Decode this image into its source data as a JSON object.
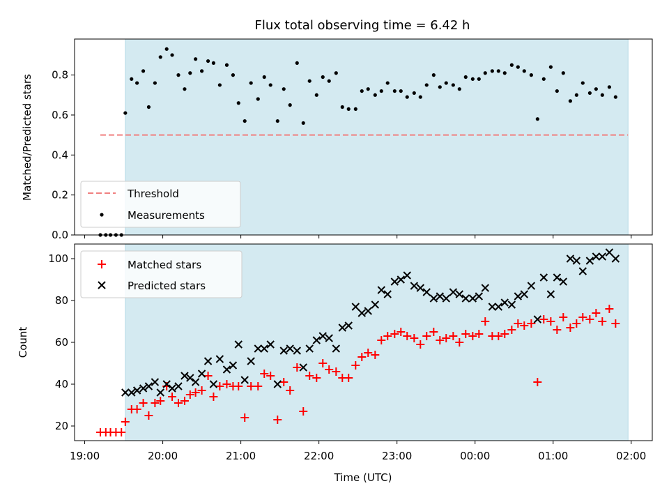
{
  "chart_data": [
    {
      "type": "scatter",
      "title": "Flux total observing time = 6.42 h",
      "ylabel": "Matched/Predicted stars",
      "ylim": [
        0,
        0.98
      ],
      "yticks": [
        "0.0",
        "0.2",
        "0.4",
        "0.6",
        "0.8"
      ],
      "ytick_values": [
        0,
        0.2,
        0.4,
        0.6,
        0.8
      ],
      "xlim": [
        18.87,
        26.27
      ],
      "x_unit": "hours since 00:00 of the first night (UTC)",
      "shaded_span": [
        19.52,
        25.96
      ],
      "shade_color": "#d4eaf1",
      "threshold": {
        "name": "Threshold",
        "y": 0.5,
        "x": [
          19.2,
          25.96
        ],
        "color": "#f08080"
      },
      "legend": [
        "Threshold",
        "Measurements"
      ],
      "legend_location": "lower left",
      "series": [
        {
          "name": "Measurements",
          "color": "#000000",
          "points": [
            [
              19.2,
              0.0
            ],
            [
              19.27,
              0.0
            ],
            [
              19.33,
              0.0
            ],
            [
              19.4,
              0.0
            ],
            [
              19.47,
              0.0
            ],
            [
              19.52,
              0.61
            ],
            [
              19.6,
              0.78
            ],
            [
              19.67,
              0.76
            ],
            [
              19.75,
              0.82
            ],
            [
              19.82,
              0.64
            ],
            [
              19.9,
              0.76
            ],
            [
              19.97,
              0.89
            ],
            [
              20.05,
              0.93
            ],
            [
              20.12,
              0.9
            ],
            [
              20.2,
              0.8
            ],
            [
              20.28,
              0.73
            ],
            [
              20.35,
              0.81
            ],
            [
              20.42,
              0.88
            ],
            [
              20.5,
              0.82
            ],
            [
              20.58,
              0.87
            ],
            [
              20.65,
              0.86
            ],
            [
              20.73,
              0.75
            ],
            [
              20.82,
              0.85
            ],
            [
              20.9,
              0.8
            ],
            [
              20.97,
              0.66
            ],
            [
              21.05,
              0.57
            ],
            [
              21.13,
              0.76
            ],
            [
              21.22,
              0.68
            ],
            [
              21.3,
              0.79
            ],
            [
              21.38,
              0.75
            ],
            [
              21.47,
              0.57
            ],
            [
              21.55,
              0.73
            ],
            [
              21.63,
              0.65
            ],
            [
              21.72,
              0.86
            ],
            [
              21.8,
              0.56
            ],
            [
              21.88,
              0.77
            ],
            [
              21.97,
              0.7
            ],
            [
              22.05,
              0.79
            ],
            [
              22.13,
              0.77
            ],
            [
              22.22,
              0.81
            ],
            [
              22.3,
              0.64
            ],
            [
              22.38,
              0.63
            ],
            [
              22.47,
              0.63
            ],
            [
              22.55,
              0.72
            ],
            [
              22.63,
              0.73
            ],
            [
              22.72,
              0.7
            ],
            [
              22.8,
              0.72
            ],
            [
              22.88,
              0.76
            ],
            [
              22.97,
              0.72
            ],
            [
              23.05,
              0.72
            ],
            [
              23.13,
              0.69
            ],
            [
              23.22,
              0.71
            ],
            [
              23.3,
              0.69
            ],
            [
              23.38,
              0.75
            ],
            [
              23.47,
              0.8
            ],
            [
              23.55,
              0.74
            ],
            [
              23.63,
              0.76
            ],
            [
              23.72,
              0.75
            ],
            [
              23.8,
              0.73
            ],
            [
              23.88,
              0.79
            ],
            [
              23.97,
              0.78
            ],
            [
              24.05,
              0.78
            ],
            [
              24.13,
              0.81
            ],
            [
              24.22,
              0.82
            ],
            [
              24.3,
              0.82
            ],
            [
              24.38,
              0.81
            ],
            [
              24.47,
              0.85
            ],
            [
              24.55,
              0.84
            ],
            [
              24.63,
              0.82
            ],
            [
              24.72,
              0.8
            ],
            [
              24.8,
              0.58
            ],
            [
              24.88,
              0.78
            ],
            [
              24.97,
              0.84
            ],
            [
              25.05,
              0.72
            ],
            [
              25.13,
              0.81
            ],
            [
              25.22,
              0.67
            ],
            [
              25.3,
              0.7
            ],
            [
              25.38,
              0.76
            ],
            [
              25.47,
              0.71
            ],
            [
              25.55,
              0.73
            ],
            [
              25.63,
              0.7
            ],
            [
              25.72,
              0.74
            ],
            [
              25.8,
              0.69
            ]
          ]
        }
      ]
    },
    {
      "type": "scatter",
      "xlabel": "Time (UTC)",
      "ylabel": "Count",
      "ylim": [
        13,
        107
      ],
      "yticks": [
        "20",
        "40",
        "60",
        "80",
        "100"
      ],
      "ytick_values": [
        20,
        40,
        60,
        80,
        100
      ],
      "xlim": [
        18.87,
        26.27
      ],
      "x_unit": "hours since 00:00 of the first night (UTC)",
      "xticks": [
        "19:00",
        "20:00",
        "21:00",
        "22:00",
        "23:00",
        "00:00",
        "01:00",
        "02:00"
      ],
      "xtick_values": [
        19,
        20,
        21,
        22,
        23,
        24,
        25,
        26
      ],
      "shaded_span": [
        19.52,
        25.96
      ],
      "shade_color": "#d4eaf1",
      "legend": [
        "Matched stars",
        "Predicted stars"
      ],
      "legend_location": "upper left",
      "series": [
        {
          "name": "Matched stars",
          "marker": "+",
          "color": "#ff0000",
          "points": [
            [
              19.2,
              17
            ],
            [
              19.27,
              17
            ],
            [
              19.33,
              17
            ],
            [
              19.4,
              17
            ],
            [
              19.47,
              17
            ],
            [
              19.52,
              22
            ],
            [
              19.6,
              28
            ],
            [
              19.67,
              28
            ],
            [
              19.75,
              31
            ],
            [
              19.82,
              25
            ],
            [
              19.9,
              31
            ],
            [
              19.97,
              32
            ],
            [
              20.05,
              39
            ],
            [
              20.12,
              34
            ],
            [
              20.2,
              31
            ],
            [
              20.28,
              32
            ],
            [
              20.35,
              35
            ],
            [
              20.42,
              36
            ],
            [
              20.5,
              37
            ],
            [
              20.58,
              44
            ],
            [
              20.65,
              34
            ],
            [
              20.73,
              39
            ],
            [
              20.82,
              40
            ],
            [
              20.9,
              39
            ],
            [
              20.97,
              39
            ],
            [
              21.05,
              24
            ],
            [
              21.13,
              39
            ],
            [
              21.22,
              39
            ],
            [
              21.3,
              45
            ],
            [
              21.38,
              44
            ],
            [
              21.47,
              23
            ],
            [
              21.55,
              41
            ],
            [
              21.63,
              37
            ],
            [
              21.72,
              48
            ],
            [
              21.8,
              27
            ],
            [
              21.88,
              44
            ],
            [
              21.97,
              43
            ],
            [
              22.05,
              50
            ],
            [
              22.13,
              47
            ],
            [
              22.22,
              46
            ],
            [
              22.3,
              43
            ],
            [
              22.38,
              43
            ],
            [
              22.47,
              49
            ],
            [
              22.55,
              53
            ],
            [
              22.63,
              55
            ],
            [
              22.72,
              54
            ],
            [
              22.8,
              61
            ],
            [
              22.88,
              63
            ],
            [
              22.97,
              64
            ],
            [
              23.05,
              65
            ],
            [
              23.13,
              63
            ],
            [
              23.22,
              62
            ],
            [
              23.3,
              59
            ],
            [
              23.38,
              63
            ],
            [
              23.47,
              65
            ],
            [
              23.55,
              61
            ],
            [
              23.63,
              62
            ],
            [
              23.72,
              63
            ],
            [
              23.8,
              60
            ],
            [
              23.88,
              64
            ],
            [
              23.97,
              63
            ],
            [
              24.05,
              64
            ],
            [
              24.13,
              70
            ],
            [
              24.22,
              63
            ],
            [
              24.3,
              63
            ],
            [
              24.38,
              64
            ],
            [
              24.47,
              66
            ],
            [
              24.55,
              69
            ],
            [
              24.63,
              68
            ],
            [
              24.72,
              69
            ],
            [
              24.8,
              41
            ],
            [
              24.88,
              71
            ],
            [
              24.97,
              70
            ],
            [
              25.05,
              66
            ],
            [
              25.13,
              72
            ],
            [
              25.22,
              67
            ],
            [
              25.3,
              69
            ],
            [
              25.38,
              72
            ],
            [
              25.47,
              71
            ],
            [
              25.55,
              74
            ],
            [
              25.63,
              70
            ],
            [
              25.72,
              76
            ],
            [
              25.8,
              69
            ]
          ]
        },
        {
          "name": "Predicted stars",
          "marker": "x",
          "color": "#000000",
          "points": [
            [
              19.52,
              36
            ],
            [
              19.6,
              36
            ],
            [
              19.67,
              37
            ],
            [
              19.75,
              38
            ],
            [
              19.82,
              39
            ],
            [
              19.9,
              41
            ],
            [
              19.97,
              36
            ],
            [
              20.05,
              40
            ],
            [
              20.12,
              38
            ],
            [
              20.2,
              39
            ],
            [
              20.28,
              44
            ],
            [
              20.35,
              43
            ],
            [
              20.42,
              41
            ],
            [
              20.5,
              45
            ],
            [
              20.58,
              51
            ],
            [
              20.65,
              40
            ],
            [
              20.73,
              52
            ],
            [
              20.82,
              47
            ],
            [
              20.9,
              49
            ],
            [
              20.97,
              59
            ],
            [
              21.05,
              42
            ],
            [
              21.13,
              51
            ],
            [
              21.22,
              57
            ],
            [
              21.3,
              57
            ],
            [
              21.38,
              59
            ],
            [
              21.47,
              40
            ],
            [
              21.55,
              56
            ],
            [
              21.63,
              57
            ],
            [
              21.72,
              56
            ],
            [
              21.8,
              48
            ],
            [
              21.88,
              57
            ],
            [
              21.97,
              61
            ],
            [
              22.05,
              63
            ],
            [
              22.13,
              62
            ],
            [
              22.22,
              57
            ],
            [
              22.3,
              67
            ],
            [
              22.38,
              68
            ],
            [
              22.47,
              77
            ],
            [
              22.55,
              74
            ],
            [
              22.63,
              75
            ],
            [
              22.72,
              78
            ],
            [
              22.8,
              85
            ],
            [
              22.88,
              83
            ],
            [
              22.97,
              89
            ],
            [
              23.05,
              90
            ],
            [
              23.13,
              92
            ],
            [
              23.22,
              87
            ],
            [
              23.3,
              86
            ],
            [
              23.38,
              84
            ],
            [
              23.47,
              81
            ],
            [
              23.55,
              82
            ],
            [
              23.63,
              81
            ],
            [
              23.72,
              84
            ],
            [
              23.8,
              83
            ],
            [
              23.88,
              81
            ],
            [
              23.97,
              81
            ],
            [
              24.05,
              82
            ],
            [
              24.13,
              86
            ],
            [
              24.22,
              77
            ],
            [
              24.3,
              77
            ],
            [
              24.38,
              79
            ],
            [
              24.47,
              78
            ],
            [
              24.55,
              82
            ],
            [
              24.63,
              83
            ],
            [
              24.72,
              87
            ],
            [
              24.8,
              71
            ],
            [
              24.88,
              91
            ],
            [
              24.97,
              83
            ],
            [
              25.05,
              91
            ],
            [
              25.13,
              89
            ],
            [
              25.22,
              100
            ],
            [
              25.3,
              99
            ],
            [
              25.38,
              94
            ],
            [
              25.47,
              99
            ],
            [
              25.55,
              101
            ],
            [
              25.63,
              101
            ],
            [
              25.72,
              103
            ],
            [
              25.8,
              100
            ]
          ]
        }
      ]
    }
  ]
}
